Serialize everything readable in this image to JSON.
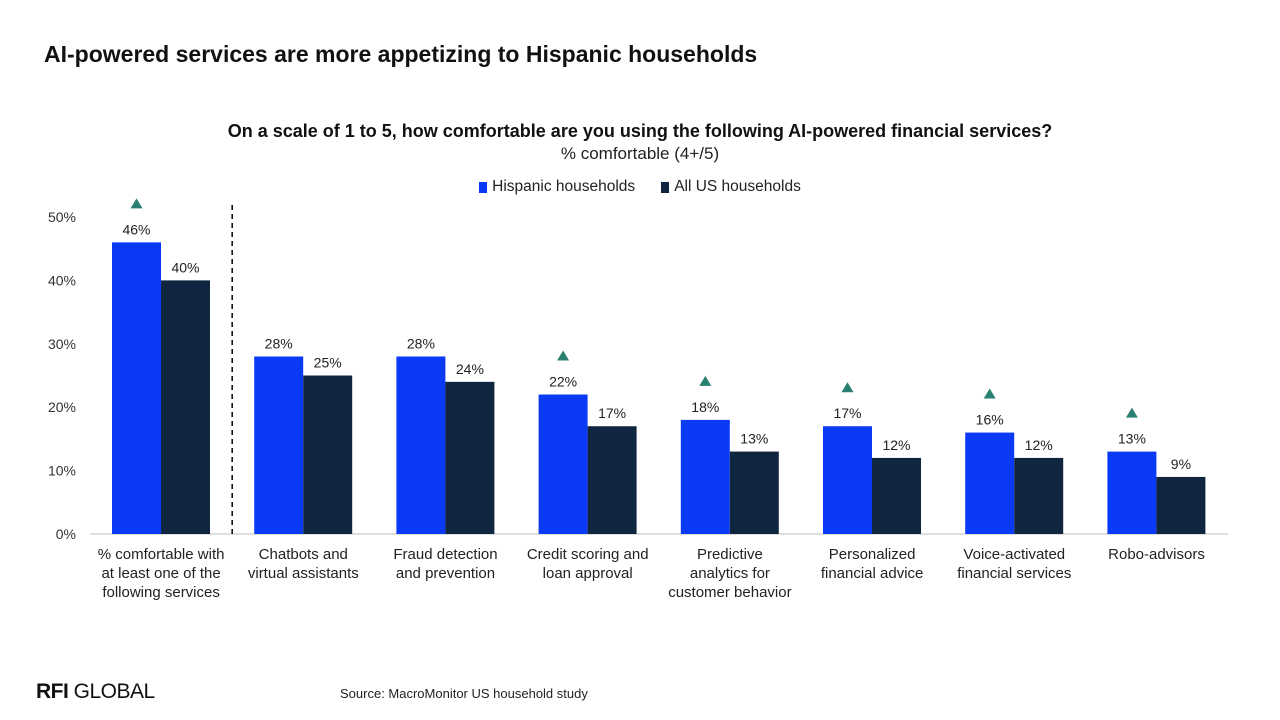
{
  "header": {
    "title": "AI-powered services are more appetizing to Hispanic households"
  },
  "chart_data": {
    "type": "bar",
    "title": "On a scale of 1 to 5, how comfortable are you using the following AI-powered financial services?",
    "subtitle": "% comfortable (4+/5)",
    "xlabel": "",
    "ylabel": "",
    "ylim": [
      0,
      50
    ],
    "yticks": [
      "0%",
      "10%",
      "20%",
      "30%",
      "40%",
      "50%"
    ],
    "grid": false,
    "legend_position": "top-center",
    "categories": [
      [
        "% comfortable with",
        "at least one of the",
        "following services"
      ],
      [
        "Chatbots and",
        "virtual assistants"
      ],
      [
        "Fraud detection",
        "and prevention"
      ],
      [
        "Credit scoring and",
        "loan approval"
      ],
      [
        "Predictive",
        "analytics for",
        "customer behavior"
      ],
      [
        "Personalized",
        "financial advice"
      ],
      [
        "Voice-activated",
        "financial services"
      ],
      [
        "Robo-advisors"
      ]
    ],
    "series": [
      {
        "name": "Hispanic households",
        "color": "#0a3af5",
        "values": [
          46,
          28,
          28,
          22,
          18,
          17,
          16,
          13
        ],
        "labels": [
          "46%",
          "28%",
          "28%",
          "22%",
          "18%",
          "17%",
          "16%",
          "13%"
        ]
      },
      {
        "name": "All US households",
        "color": "#0f2540",
        "values": [
          40,
          25,
          24,
          17,
          13,
          12,
          12,
          9
        ],
        "labels": [
          "40%",
          "25%",
          "24%",
          "17%",
          "13%",
          "12%",
          "12%",
          "9%"
        ]
      }
    ],
    "significance_markers": [
      true,
      false,
      false,
      true,
      true,
      true,
      true,
      true
    ],
    "marker_color": "#2a8070",
    "separator_after_index": 0
  },
  "footer": {
    "logo_bold": "RFI",
    "logo_light": "GLOBAL",
    "source": "Source: MacroMonitor US household study"
  }
}
